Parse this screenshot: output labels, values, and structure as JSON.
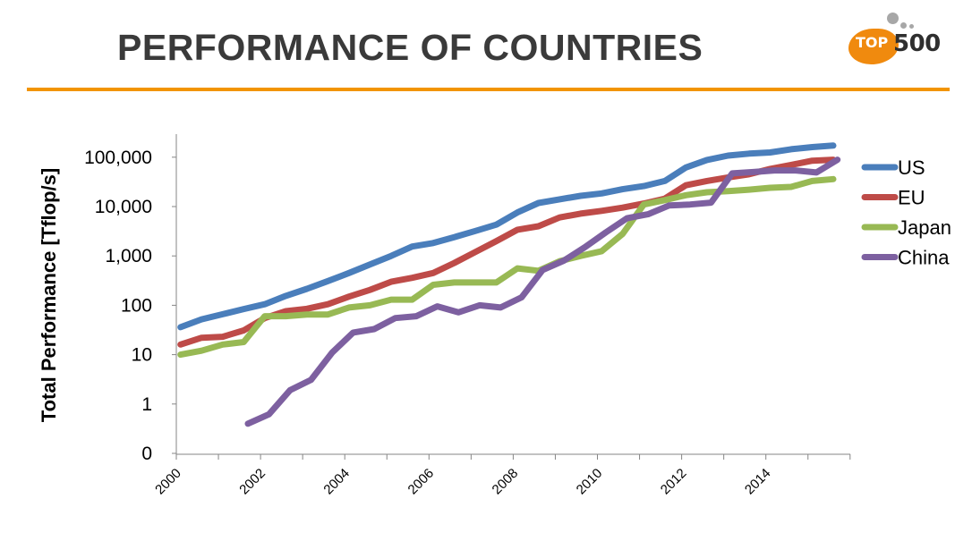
{
  "slide": {
    "title": "PERFORMANCE OF COUNTRIES",
    "accent_color": "#f29400"
  },
  "logo": {
    "text_top": "TOP",
    "text_500": "500"
  },
  "chart_data": {
    "type": "line",
    "title": "",
    "xlabel": "",
    "ylabel": "Total Performance  [Tflop/s]",
    "y_scale": "log",
    "xlim": [
      2000,
      2016
    ],
    "y_ticks": [
      {
        "value": 0.1,
        "label": "0"
      },
      {
        "value": 1,
        "label": "1"
      },
      {
        "value": 10,
        "label": "10"
      },
      {
        "value": 100,
        "label": "100"
      },
      {
        "value": 1000,
        "label": "1,000"
      },
      {
        "value": 10000,
        "label": "10,000"
      },
      {
        "value": 100000,
        "label": "100,000"
      }
    ],
    "x_ticks": [
      {
        "value": 2000,
        "label": "2000"
      },
      {
        "value": 2002,
        "label": "2002"
      },
      {
        "value": 2004,
        "label": "2004"
      },
      {
        "value": 2006,
        "label": "2006"
      },
      {
        "value": 2008,
        "label": "2008"
      },
      {
        "value": 2010,
        "label": "2010"
      },
      {
        "value": 2012,
        "label": "2012"
      },
      {
        "value": 2014,
        "label": "2014"
      }
    ],
    "x_minor_ticks": [
      2001,
      2003,
      2005,
      2007,
      2009,
      2011,
      2013,
      2015,
      2016
    ],
    "grid": false,
    "legend_position": "right",
    "series": [
      {
        "name": "US",
        "color": "#4a7ebb",
        "x": [
          2000.1,
          2000.6,
          2001.1,
          2001.6,
          2002.1,
          2002.6,
          2003.1,
          2003.6,
          2004.1,
          2004.6,
          2005.1,
          2005.6,
          2006.1,
          2006.6,
          2007.1,
          2007.6,
          2008.1,
          2008.6,
          2009.1,
          2009.6,
          2010.1,
          2010.6,
          2011.1,
          2011.6,
          2012.1,
          2012.6,
          2013.1,
          2013.6,
          2014.1,
          2014.6,
          2015.1,
          2015.6
        ],
        "y": [
          36,
          52,
          66,
          84,
          105,
          155,
          215,
          310,
          450,
          670,
          1000,
          1550,
          1820,
          2400,
          3200,
          4300,
          7600,
          11800,
          14000,
          16500,
          18500,
          22500,
          26000,
          33000,
          62000,
          88000,
          108000,
          118000,
          125000,
          145000,
          160000,
          172000
        ]
      },
      {
        "name": "EU",
        "color": "#be4b48",
        "x": [
          2000.1,
          2000.6,
          2001.1,
          2001.6,
          2002.1,
          2002.6,
          2003.1,
          2003.6,
          2004.1,
          2004.6,
          2005.1,
          2005.6,
          2006.1,
          2006.6,
          2007.1,
          2007.6,
          2008.1,
          2008.6,
          2009.1,
          2009.6,
          2010.1,
          2010.6,
          2011.1,
          2011.6,
          2012.1,
          2012.6,
          2013.1,
          2013.6,
          2014.1,
          2014.6,
          2015.1,
          2015.6
        ],
        "y": [
          16,
          22,
          23,
          31,
          55,
          76,
          85,
          105,
          150,
          205,
          300,
          360,
          450,
          720,
          1200,
          2000,
          3400,
          4000,
          6000,
          7200,
          8200,
          9500,
          11500,
          14500,
          27000,
          33000,
          39000,
          45000,
          58000,
          70000,
          85000,
          89000
        ]
      },
      {
        "name": "Japan",
        "color": "#98b954",
        "x": [
          2000.1,
          2000.6,
          2001.1,
          2001.6,
          2002.1,
          2002.6,
          2003.1,
          2003.6,
          2004.1,
          2004.6,
          2005.1,
          2005.6,
          2006.1,
          2006.6,
          2007.1,
          2007.6,
          2008.1,
          2008.6,
          2009.1,
          2009.6,
          2010.1,
          2010.6,
          2011.1,
          2011.6,
          2012.1,
          2012.6,
          2013.1,
          2013.6,
          2014.1,
          2014.6,
          2015.1,
          2015.6
        ],
        "y": [
          10,
          12,
          16,
          18,
          60,
          60,
          65,
          65,
          90,
          100,
          130,
          130,
          260,
          290,
          290,
          290,
          560,
          500,
          780,
          1000,
          1250,
          2800,
          11000,
          13500,
          17000,
          19500,
          20500,
          22000,
          24000,
          25000,
          33000,
          36000
        ]
      },
      {
        "name": "China",
        "color": "#7d60a0",
        "x": [
          2001.7,
          2002.2,
          2002.7,
          2003.2,
          2003.7,
          2004.2,
          2004.7,
          2005.2,
          2005.7,
          2006.2,
          2006.7,
          2007.2,
          2007.7,
          2008.2,
          2008.7,
          2009.2,
          2009.7,
          2010.2,
          2010.7,
          2011.2,
          2011.7,
          2012.2,
          2012.7,
          2013.2,
          2013.7,
          2014.2,
          2014.7,
          2015.2,
          2015.7
        ],
        "y": [
          0.4,
          0.62,
          1.9,
          3.1,
          11,
          28,
          33,
          55,
          60,
          95,
          72,
          100,
          90,
          145,
          520,
          800,
          1500,
          3000,
          5800,
          7000,
          10500,
          11000,
          12000,
          47000,
          50000,
          54000,
          54000,
          49000,
          89000
        ]
      }
    ]
  }
}
